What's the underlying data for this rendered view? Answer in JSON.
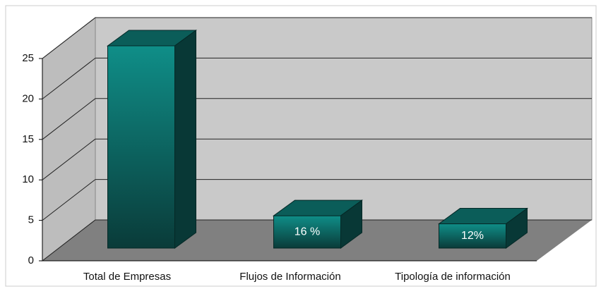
{
  "chart_data": {
    "type": "bar3d",
    "categories": [
      "Total de Empresas",
      "Flujos de Información",
      "Tipología de información"
    ],
    "values": [
      25,
      4,
      3
    ],
    "value_labels": [
      null,
      "16 %",
      "12%"
    ],
    "color": "#0e8a84",
    "ylim": [
      0,
      25
    ],
    "yticks": [
      0,
      5,
      10,
      15,
      20,
      25
    ],
    "grid": true
  }
}
